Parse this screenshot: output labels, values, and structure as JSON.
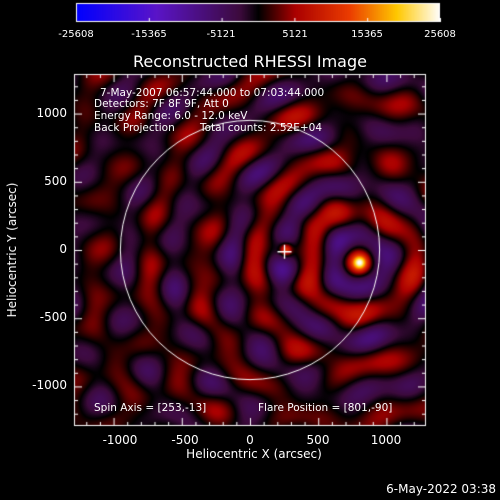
{
  "colorbar": {
    "tick_labels": [
      "-25608",
      "-15365",
      "-5121",
      "5121",
      "15365",
      "25608"
    ],
    "range": [
      -25608,
      25608
    ]
  },
  "plot": {
    "title": "Reconstructed RHESSI Image",
    "info_lines": [
      "7-May-2007 06:57:44.000 to 07:03:44.000",
      "Detectors: 7F 8F 9F, Att 0",
      "Energy Range: 6.0 - 12.0 keV"
    ],
    "back_projection": "Back Projection",
    "total_counts": "Total counts: 2.52E+04",
    "spin_axis": "Spin Axis = [253,-13]",
    "flare_position": "Flare Position = [801,-90]",
    "xlabel": "Heliocentric X (arcsec)",
    "ylabel": "Heliocentric Y (arcsec)",
    "x_ticks": [
      "-1000",
      "-500",
      "0",
      "500",
      "1000"
    ],
    "y_ticks": [
      "1000",
      "500",
      "0",
      "-500",
      "-1000"
    ],
    "x_tick_values": [
      -1000,
      -500,
      0,
      500,
      1000
    ],
    "y_tick_values": [
      1000,
      500,
      0,
      -500,
      -1000
    ],
    "xlim": [
      -1290,
      1290
    ],
    "ylim": [
      -1290,
      1290
    ],
    "solar_limb_radius_arcsec": 950,
    "spin_axis_value": [
      253,
      -13
    ],
    "flare_position_value": [
      801,
      -90
    ]
  },
  "footer_date": "6-May-2022 03:38"
}
